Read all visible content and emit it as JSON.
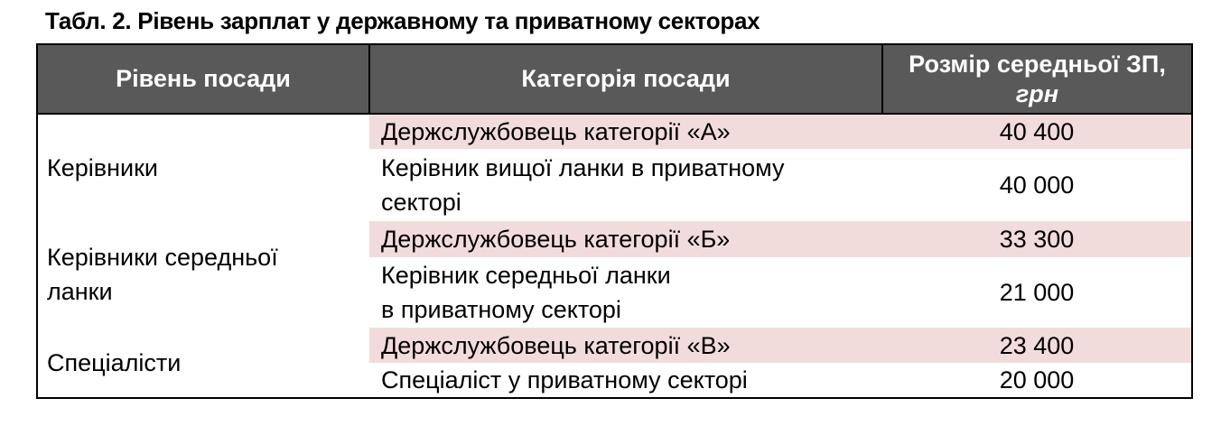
{
  "title": "Табл. 2. Рівень зарплат у державному та приватному секторах",
  "colors": {
    "header_bg": "#595959",
    "header_text": "#ffffff",
    "highlight_bg": "#f2dcdb",
    "border": "#000000",
    "text": "#000000"
  },
  "table": {
    "columns": [
      {
        "label": "Рівень посади"
      },
      {
        "label": "Категорія посади"
      },
      {
        "label": "Розмір середньої ЗП,",
        "unit": "грн"
      }
    ],
    "groups": [
      {
        "level": "Керівники",
        "rows": [
          {
            "category": "Держслужбовець категорії «А»",
            "salary": "40 400",
            "highlighted": true
          },
          {
            "category": "Керівник вищої ланки в приватному\nсекторі",
            "salary": "40 000",
            "highlighted": false
          }
        ]
      },
      {
        "level": "Керівники середньої\nланки",
        "rows": [
          {
            "category": "Держслужбовець категорії «Б»",
            "salary": "33 300",
            "highlighted": true
          },
          {
            "category": "Керівник середньої ланки\nв приватному секторі",
            "salary": "21 000",
            "highlighted": false
          }
        ]
      },
      {
        "level": "Спеціалісти",
        "rows": [
          {
            "category": "Держслужбовець категорії «В»",
            "salary": "23 400",
            "highlighted": true
          },
          {
            "category": "Спеціаліст у приватному секторі",
            "salary": "20 000",
            "highlighted": false
          }
        ]
      }
    ]
  }
}
